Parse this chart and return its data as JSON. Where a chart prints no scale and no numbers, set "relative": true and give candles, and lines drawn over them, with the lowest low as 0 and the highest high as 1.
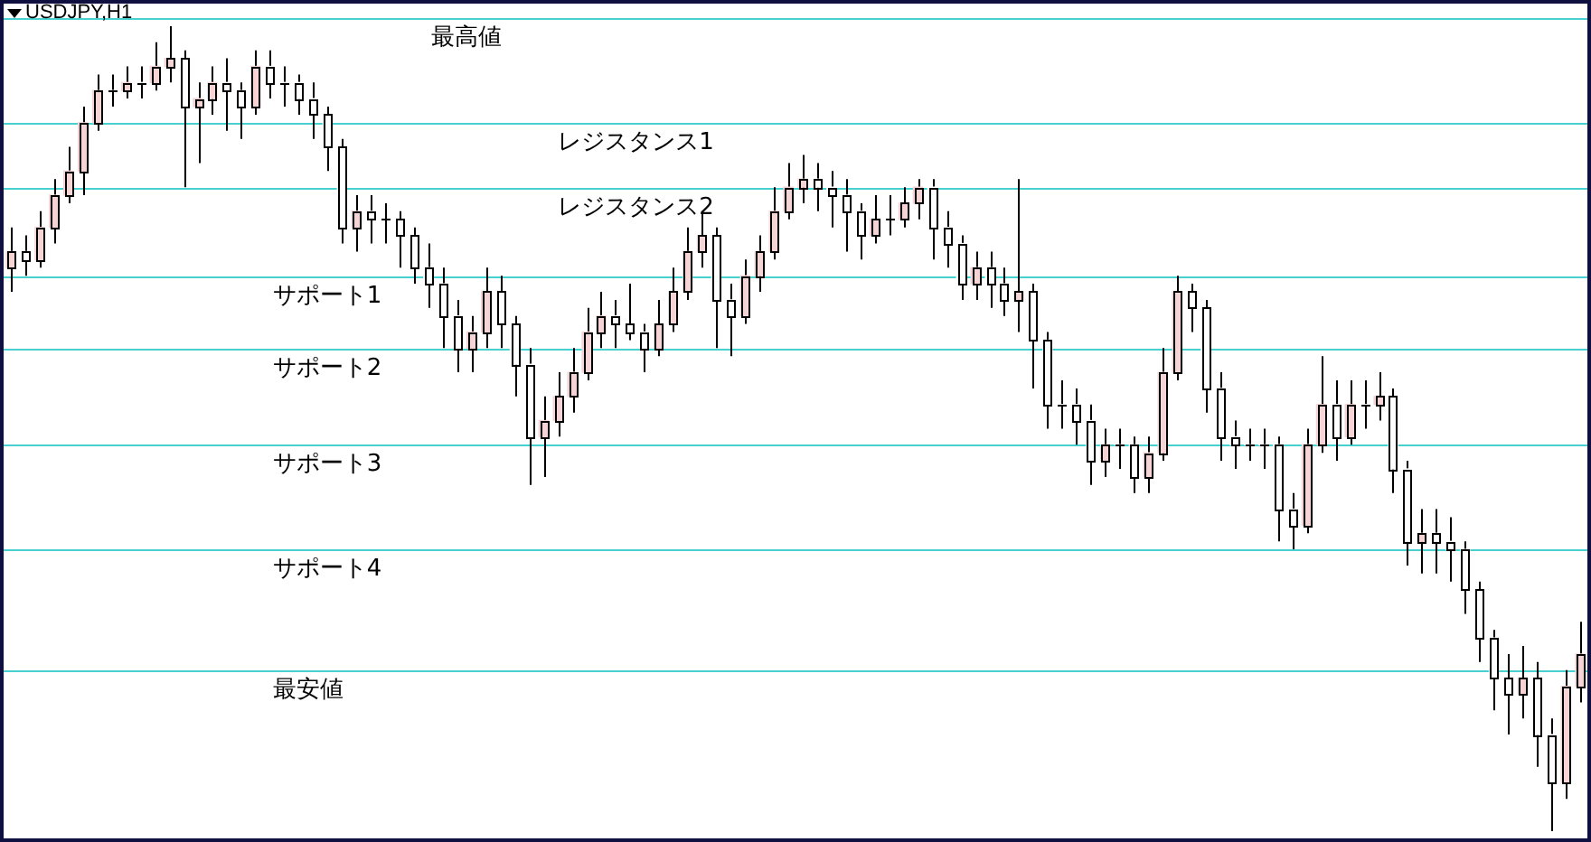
{
  "chart_data": {
    "type": "candlestick",
    "title": "USDJPY,H1",
    "relative": true,
    "colors": [
      "#f4d4d4",
      "#ffffff",
      "#f4d4d4",
      "#f4d4d4",
      "#f4d4d4",
      "#f4d4d4",
      "#f4d4d4",
      "#ffffff",
      "#f4d4d4",
      "#ffffff",
      "#f4d4d4",
      "#f4d4d4",
      "#ffffff",
      "#f4d4d4",
      "#f4d4d4",
      "#ffffff",
      "#ffffff",
      "#f4d4d4",
      "#ffffff",
      "#ffffff",
      "#ffffff",
      "#ffffff",
      "#ffffff",
      "#ffffff",
      "#f4d4d4",
      "#ffffff",
      "#ffffff",
      "#ffffff",
      "#ffffff",
      "#ffffff",
      "#ffffff",
      "#ffffff",
      "#f4d4d4",
      "#f4d4d4",
      "#ffffff",
      "#ffffff",
      "#ffffff",
      "#f4d4d4",
      "#f4d4d4",
      "#f4d4d4",
      "#f4d4d4",
      "#f4d4d4",
      "#ffffff",
      "#ffffff",
      "#ffffff",
      "#f4d4d4",
      "#f4d4d4",
      "#f4d4d4",
      "#f4d4d4",
      "#ffffff",
      "#ffffff",
      "#f4d4d4",
      "#f4d4d4",
      "#f4d4d4",
      "#f4d4d4",
      "#f4d4d4",
      "#ffffff",
      "#ffffff",
      "#ffffff",
      "#ffffff",
      "#f4d4d4",
      "#ffffff",
      "#f4d4d4",
      "#f4d4d4",
      "#ffffff",
      "#ffffff",
      "#ffffff",
      "#f4d4d4",
      "#ffffff",
      "#ffffff",
      "#f4d4d4",
      "#ffffff",
      "#ffffff",
      "#ffffff",
      "#ffffff",
      "#ffffff",
      "#f4d4d4",
      "#ffffff",
      "#ffffff",
      "#f4d4d4",
      "#f4d4d4",
      "#f4d4d4",
      "#ffffff",
      "#ffffff",
      "#ffffff",
      "#ffffff",
      "#ffffff",
      "#ffffff",
      "#ffffff",
      "#ffffff",
      "#f4d4d4",
      "#f4d4d4",
      "#ffffff",
      "#f4d4d4",
      "#ffffff",
      "#f4d4d4",
      "#ffffff",
      "#ffffff",
      "#f4d4d4",
      "#ffffff",
      "#ffffff",
      "#ffffff",
      "#ffffff",
      "#ffffff",
      "#ffffff",
      "#f4d4d4",
      "#ffffff",
      "#ffffff",
      "#f4d4d4",
      "#f4d4d4"
    ],
    "categories": [
      null,
      null,
      null,
      null,
      null,
      null,
      null,
      null,
      null,
      null,
      null,
      null,
      null,
      null,
      null,
      null,
      null,
      null,
      null,
      null,
      null,
      null,
      null,
      null,
      null,
      null,
      null,
      null,
      null,
      null,
      null,
      null,
      null,
      null,
      null,
      null,
      null,
      null,
      null,
      null,
      null,
      null,
      null,
      null,
      null,
      null,
      null,
      null,
      null,
      null,
      null,
      null,
      null,
      null,
      null,
      null,
      null,
      null,
      null,
      null,
      null,
      null,
      null,
      null,
      null,
      null,
      null,
      null,
      null,
      null,
      null,
      null,
      null,
      null,
      null,
      null,
      null,
      null,
      null,
      null,
      null,
      null,
      null,
      null,
      null,
      null,
      null,
      null,
      null,
      null,
      null,
      null,
      null,
      null,
      null,
      null,
      null,
      null,
      null,
      null,
      null,
      null,
      null,
      null,
      null,
      null,
      null,
      null,
      null,
      null
    ],
    "ohlc": [
      [
        0.7,
        0.75,
        0.67,
        0.72
      ],
      [
        0.72,
        0.74,
        0.69,
        0.71
      ],
      [
        0.71,
        0.77,
        0.7,
        0.75
      ],
      [
        0.75,
        0.81,
        0.73,
        0.79
      ],
      [
        0.79,
        0.85,
        0.78,
        0.82
      ],
      [
        0.82,
        0.9,
        0.79,
        0.88
      ],
      [
        0.88,
        0.94,
        0.87,
        0.92
      ],
      [
        0.92,
        0.94,
        0.9,
        0.92
      ],
      [
        0.92,
        0.95,
        0.91,
        0.93
      ],
      [
        0.93,
        0.95,
        0.91,
        0.93
      ],
      [
        0.93,
        0.98,
        0.92,
        0.95
      ],
      [
        0.95,
        1.0,
        0.93,
        0.96
      ],
      [
        0.96,
        0.97,
        0.8,
        0.9
      ],
      [
        0.9,
        0.93,
        0.83,
        0.91
      ],
      [
        0.91,
        0.95,
        0.89,
        0.93
      ],
      [
        0.93,
        0.96,
        0.87,
        0.92
      ],
      [
        0.92,
        0.93,
        0.86,
        0.9
      ],
      [
        0.9,
        0.97,
        0.89,
        0.95
      ],
      [
        0.95,
        0.97,
        0.91,
        0.93
      ],
      [
        0.93,
        0.95,
        0.9,
        0.93
      ],
      [
        0.93,
        0.94,
        0.89,
        0.91
      ],
      [
        0.91,
        0.93,
        0.86,
        0.89
      ],
      [
        0.89,
        0.9,
        0.82,
        0.85
      ],
      [
        0.85,
        0.86,
        0.73,
        0.75
      ],
      [
        0.75,
        0.79,
        0.72,
        0.77
      ],
      [
        0.77,
        0.79,
        0.73,
        0.76
      ],
      [
        0.76,
        0.78,
        0.73,
        0.76
      ],
      [
        0.76,
        0.77,
        0.7,
        0.74
      ],
      [
        0.74,
        0.75,
        0.68,
        0.7
      ],
      [
        0.7,
        0.73,
        0.65,
        0.68
      ],
      [
        0.68,
        0.7,
        0.6,
        0.64
      ],
      [
        0.64,
        0.66,
        0.57,
        0.6
      ],
      [
        0.6,
        0.64,
        0.57,
        0.62
      ],
      [
        0.62,
        0.7,
        0.6,
        0.67
      ],
      [
        0.67,
        0.69,
        0.6,
        0.63
      ],
      [
        0.63,
        0.64,
        0.54,
        0.58
      ],
      [
        0.58,
        0.6,
        0.43,
        0.49
      ],
      [
        0.49,
        0.54,
        0.44,
        0.51
      ],
      [
        0.51,
        0.57,
        0.49,
        0.54
      ],
      [
        0.54,
        0.6,
        0.52,
        0.57
      ],
      [
        0.57,
        0.65,
        0.56,
        0.62
      ],
      [
        0.62,
        0.67,
        0.6,
        0.64
      ],
      [
        0.64,
        0.66,
        0.6,
        0.63
      ],
      [
        0.63,
        0.68,
        0.61,
        0.62
      ],
      [
        0.62,
        0.63,
        0.57,
        0.6
      ],
      [
        0.6,
        0.66,
        0.59,
        0.63
      ],
      [
        0.63,
        0.7,
        0.62,
        0.67
      ],
      [
        0.67,
        0.75,
        0.66,
        0.72
      ],
      [
        0.72,
        0.77,
        0.7,
        0.74
      ],
      [
        0.74,
        0.75,
        0.6,
        0.66
      ],
      [
        0.66,
        0.68,
        0.59,
        0.64
      ],
      [
        0.64,
        0.71,
        0.63,
        0.69
      ],
      [
        0.69,
        0.74,
        0.67,
        0.72
      ],
      [
        0.72,
        0.8,
        0.71,
        0.77
      ],
      [
        0.77,
        0.83,
        0.76,
        0.8
      ],
      [
        0.8,
        0.84,
        0.78,
        0.81
      ],
      [
        0.81,
        0.83,
        0.77,
        0.8
      ],
      [
        0.8,
        0.82,
        0.75,
        0.79
      ],
      [
        0.79,
        0.81,
        0.72,
        0.77
      ],
      [
        0.77,
        0.78,
        0.71,
        0.74
      ],
      [
        0.74,
        0.79,
        0.73,
        0.76
      ],
      [
        0.76,
        0.79,
        0.74,
        0.76
      ],
      [
        0.76,
        0.8,
        0.75,
        0.78
      ],
      [
        0.78,
        0.81,
        0.76,
        0.8
      ],
      [
        0.8,
        0.81,
        0.71,
        0.75
      ],
      [
        0.75,
        0.77,
        0.7,
        0.73
      ],
      [
        0.73,
        0.74,
        0.66,
        0.68
      ],
      [
        0.68,
        0.72,
        0.66,
        0.7
      ],
      [
        0.7,
        0.72,
        0.65,
        0.68
      ],
      [
        0.68,
        0.7,
        0.64,
        0.66
      ],
      [
        0.66,
        0.81,
        0.62,
        0.67
      ],
      [
        0.67,
        0.68,
        0.55,
        0.61
      ],
      [
        0.61,
        0.62,
        0.5,
        0.53
      ],
      [
        0.53,
        0.56,
        0.5,
        0.53
      ],
      [
        0.53,
        0.55,
        0.48,
        0.51
      ],
      [
        0.51,
        0.53,
        0.43,
        0.46
      ],
      [
        0.46,
        0.5,
        0.44,
        0.48
      ],
      [
        0.48,
        0.5,
        0.45,
        0.48
      ],
      [
        0.48,
        0.49,
        0.42,
        0.44
      ],
      [
        0.44,
        0.49,
        0.42,
        0.47
      ],
      [
        0.47,
        0.6,
        0.46,
        0.57
      ],
      [
        0.57,
        0.69,
        0.56,
        0.67
      ],
      [
        0.67,
        0.68,
        0.62,
        0.65
      ],
      [
        0.65,
        0.66,
        0.52,
        0.55
      ],
      [
        0.55,
        0.57,
        0.46,
        0.49
      ],
      [
        0.49,
        0.51,
        0.45,
        0.48
      ],
      [
        0.48,
        0.5,
        0.46,
        0.48
      ],
      [
        0.48,
        0.5,
        0.45,
        0.48
      ],
      [
        0.48,
        0.49,
        0.36,
        0.4
      ],
      [
        0.4,
        0.42,
        0.35,
        0.38
      ],
      [
        0.38,
        0.5,
        0.37,
        0.48
      ],
      [
        0.48,
        0.59,
        0.47,
        0.53
      ],
      [
        0.53,
        0.56,
        0.46,
        0.49
      ],
      [
        0.49,
        0.56,
        0.48,
        0.53
      ],
      [
        0.53,
        0.56,
        0.5,
        0.53
      ],
      [
        0.53,
        0.57,
        0.51,
        0.54
      ],
      [
        0.54,
        0.55,
        0.42,
        0.45
      ],
      [
        0.45,
        0.46,
        0.33,
        0.36
      ],
      [
        0.36,
        0.4,
        0.32,
        0.37
      ],
      [
        0.37,
        0.4,
        0.32,
        0.36
      ],
      [
        0.36,
        0.39,
        0.31,
        0.35
      ],
      [
        0.35,
        0.36,
        0.27,
        0.3
      ],
      [
        0.3,
        0.31,
        0.21,
        0.24
      ],
      [
        0.24,
        0.25,
        0.15,
        0.19
      ],
      [
        0.19,
        0.22,
        0.12,
        0.17
      ],
      [
        0.17,
        0.23,
        0.14,
        0.19
      ],
      [
        0.19,
        0.21,
        0.08,
        0.12
      ],
      [
        0.12,
        0.14,
        0.0,
        0.06
      ],
      [
        0.06,
        0.2,
        0.04,
        0.18
      ],
      [
        0.18,
        0.26,
        0.16,
        0.22
      ]
    ],
    "ref_lines": [
      {
        "axis": "y",
        "value": 1.01,
        "label": "最高値",
        "color": "#48d0d0"
      },
      {
        "axis": "y",
        "value": 0.88,
        "label": "レジスタンス1",
        "color": "#48d0d0"
      },
      {
        "axis": "y",
        "value": 0.8,
        "label": "レジスタンス2",
        "color": "#48d0d0"
      },
      {
        "axis": "y",
        "value": 0.69,
        "label": "サポート1",
        "color": "#48d0d0"
      },
      {
        "axis": "y",
        "value": 0.6,
        "label": "サポート2",
        "color": "#48d0d0"
      },
      {
        "axis": "y",
        "value": 0.48,
        "label": "サポート3",
        "color": "#48d0d0"
      },
      {
        "axis": "y",
        "value": 0.35,
        "label": "サポート4",
        "color": "#48d0d0"
      },
      {
        "axis": "y",
        "value": 0.2,
        "label": "最安値",
        "color": "#48d0d0"
      }
    ]
  }
}
